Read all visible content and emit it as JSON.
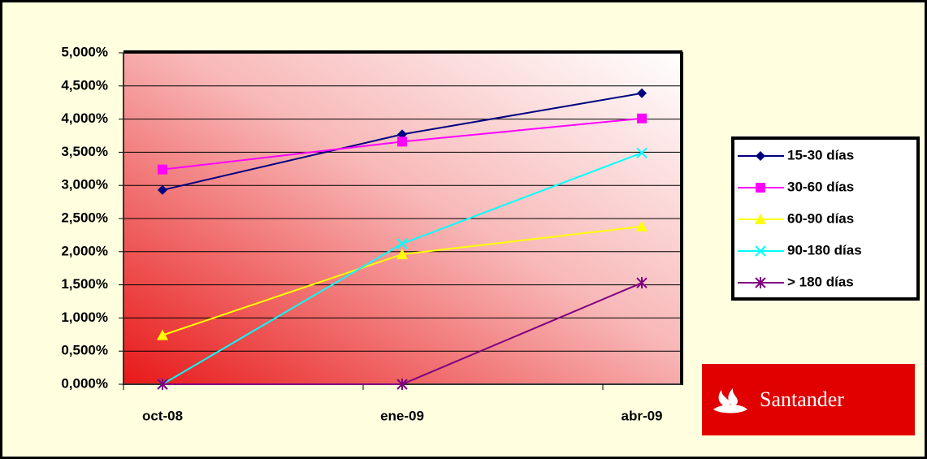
{
  "chart_data": {
    "type": "line",
    "categories": [
      "oct-08",
      "ene-09",
      "abr-09"
    ],
    "series": [
      {
        "name": "15-30 días",
        "color": "#000080",
        "marker": "diamond",
        "values": [
          2.93,
          3.77,
          4.39
        ]
      },
      {
        "name": "30-60 días",
        "color": "#ff00ff",
        "marker": "square",
        "values": [
          3.24,
          3.66,
          4.01
        ]
      },
      {
        "name": "60-90 días",
        "color": "#ffff00",
        "marker": "triangle",
        "values": [
          0.74,
          1.96,
          2.38
        ]
      },
      {
        "name": "90-180 días",
        "color": "#00ffff",
        "marker": "x",
        "values": [
          0,
          2.12,
          3.49
        ]
      },
      {
        "name": "> 180 días",
        "color": "#800080",
        "marker": "asterisk",
        "values": [
          0,
          0,
          1.53
        ]
      }
    ],
    "ylim": [
      0,
      5
    ],
    "yticks": [
      {
        "value": 0,
        "label": "0,000%"
      },
      {
        "value": 0.5,
        "label": "0,500%"
      },
      {
        "value": 1,
        "label": "1,000%"
      },
      {
        "value": 1.5,
        "label": "1,500%"
      },
      {
        "value": 2,
        "label": "2,000%"
      },
      {
        "value": 2.5,
        "label": "2,500%"
      },
      {
        "value": 3,
        "label": "3,000%"
      },
      {
        "value": 3.5,
        "label": "3,500%"
      },
      {
        "value": 4,
        "label": "4,000%"
      },
      {
        "value": 4.5,
        "label": "4,500%"
      },
      {
        "value": 5,
        "label": "5,000%"
      }
    ],
    "grid": true,
    "legend": "right",
    "logo": "Santander"
  }
}
